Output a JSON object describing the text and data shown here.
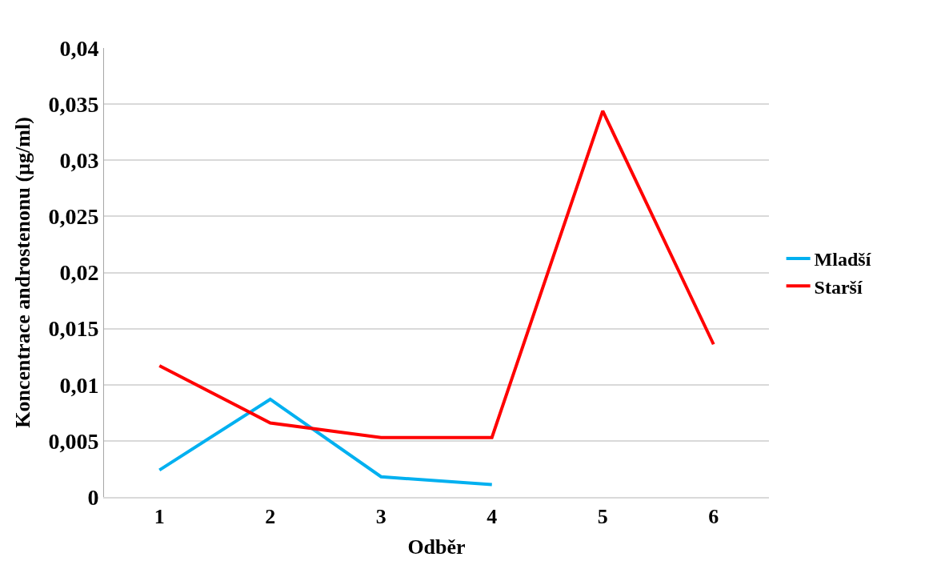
{
  "chart_data": {
    "type": "line",
    "xlabel": "Odběr",
    "ylabel": "Koncentrace androstenonu (µg/ml)",
    "categories": [
      "1",
      "2",
      "3",
      "4",
      "5",
      "6"
    ],
    "series": [
      {
        "name": "Mladší",
        "color": "#00b0f0",
        "values": [
          0.0024,
          0.0087,
          0.0018,
          0.0011,
          null,
          null
        ]
      },
      {
        "name": "Starší",
        "color": "#ff0000",
        "values": [
          0.0117,
          0.0066,
          0.0053,
          0.0053,
          0.0344,
          0.0136
        ]
      }
    ],
    "ylim": [
      0,
      0.04
    ],
    "yticks": [
      {
        "value": 0,
        "label": "0"
      },
      {
        "value": 0.005,
        "label": "0,005"
      },
      {
        "value": 0.01,
        "label": "0,01"
      },
      {
        "value": 0.015,
        "label": "0,015"
      },
      {
        "value": 0.02,
        "label": "0,02"
      },
      {
        "value": 0.025,
        "label": "0,025"
      },
      {
        "value": 0.03,
        "label": "0,03"
      },
      {
        "value": 0.035,
        "label": "0,035"
      },
      {
        "value": 0.04,
        "label": "0,04"
      }
    ],
    "grid": "y",
    "legend": "right",
    "marker": "none",
    "line_style": "solid"
  }
}
